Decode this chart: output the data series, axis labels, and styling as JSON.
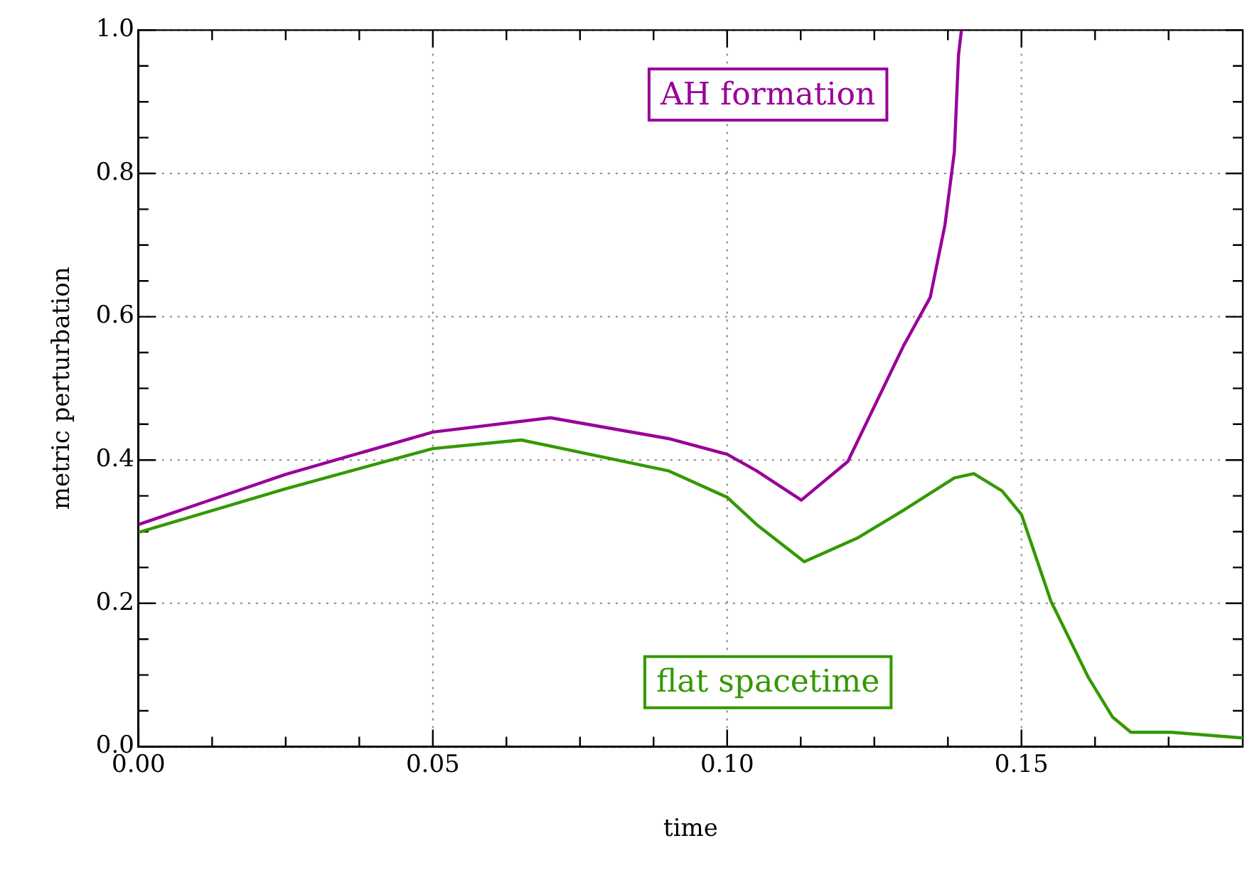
{
  "chart_data": {
    "type": "line",
    "xlabel": "time",
    "ylabel": "metric perturbation",
    "xlim": [
      0,
      0.1876
    ],
    "ylim": [
      0,
      1
    ],
    "xticks": [
      {
        "value": 0,
        "label": "0.00"
      },
      {
        "value": 0.0125,
        "label": null
      },
      {
        "value": 0.025,
        "label": null
      },
      {
        "value": 0.0375,
        "label": null
      },
      {
        "value": 0.05,
        "label": "0.05"
      },
      {
        "value": 0.0625,
        "label": null
      },
      {
        "value": 0.075,
        "label": null
      },
      {
        "value": 0.0875,
        "label": null
      },
      {
        "value": 0.1,
        "label": "0.10"
      },
      {
        "value": 0.1125,
        "label": null
      },
      {
        "value": 0.125,
        "label": null
      },
      {
        "value": 0.1375,
        "label": null
      },
      {
        "value": 0.15,
        "label": "0.15"
      },
      {
        "value": 0.1625,
        "label": null
      },
      {
        "value": 0.175,
        "label": null
      }
    ],
    "yticks": [
      {
        "value": 0,
        "label": "0.0"
      },
      {
        "value": 0.05,
        "label": null
      },
      {
        "value": 0.1,
        "label": null
      },
      {
        "value": 0.15,
        "label": null
      },
      {
        "value": 0.2,
        "label": "0.2"
      },
      {
        "value": 0.25,
        "label": null
      },
      {
        "value": 0.3,
        "label": null
      },
      {
        "value": 0.35,
        "label": null
      },
      {
        "value": 0.4,
        "label": "0.4"
      },
      {
        "value": 0.45,
        "label": null
      },
      {
        "value": 0.5,
        "label": null
      },
      {
        "value": 0.55,
        "label": null
      },
      {
        "value": 0.6,
        "label": "0.6"
      },
      {
        "value": 0.65,
        "label": null
      },
      {
        "value": 0.7,
        "label": null
      },
      {
        "value": 0.75,
        "label": null
      },
      {
        "value": 0.8,
        "label": "0.8"
      },
      {
        "value": 0.85,
        "label": null
      },
      {
        "value": 0.9,
        "label": null
      },
      {
        "value": 0.95,
        "label": null
      },
      {
        "value": 1,
        "label": "1.0"
      }
    ],
    "grid": true,
    "legend": false,
    "marker": "none",
    "line_style": "solid",
    "series": [
      {
        "name": "AH formation",
        "color": "#990099",
        "x": [
          0,
          0.025,
          0.05,
          0.07,
          0.09,
          0.1,
          0.105,
          0.1126,
          0.1205,
          0.13,
          0.1345,
          0.137,
          0.1386,
          0.1393,
          0.1398
        ],
        "values": [
          0.31,
          0.38,
          0.439,
          0.459,
          0.43,
          0.408,
          0.385,
          0.344,
          0.398,
          0.56,
          0.627,
          0.728,
          0.83,
          0.965,
          1.0
        ]
      },
      {
        "name": "flat spacetime",
        "color": "#339900",
        "x": [
          0,
          0.025,
          0.05,
          0.065,
          0.09,
          0.1,
          0.105,
          0.1131,
          0.1221,
          0.13,
          0.1386,
          0.1419,
          0.1467,
          0.15,
          0.155,
          0.1614,
          0.1655,
          0.1686,
          0.1755,
          0.1876
        ],
        "values": [
          0.299,
          0.36,
          0.416,
          0.428,
          0.385,
          0.348,
          0.31,
          0.258,
          0.291,
          0.33,
          0.375,
          0.381,
          0.357,
          0.324,
          0.203,
          0.096,
          0.041,
          0.02,
          0.02,
          0.012
        ]
      }
    ]
  }
}
